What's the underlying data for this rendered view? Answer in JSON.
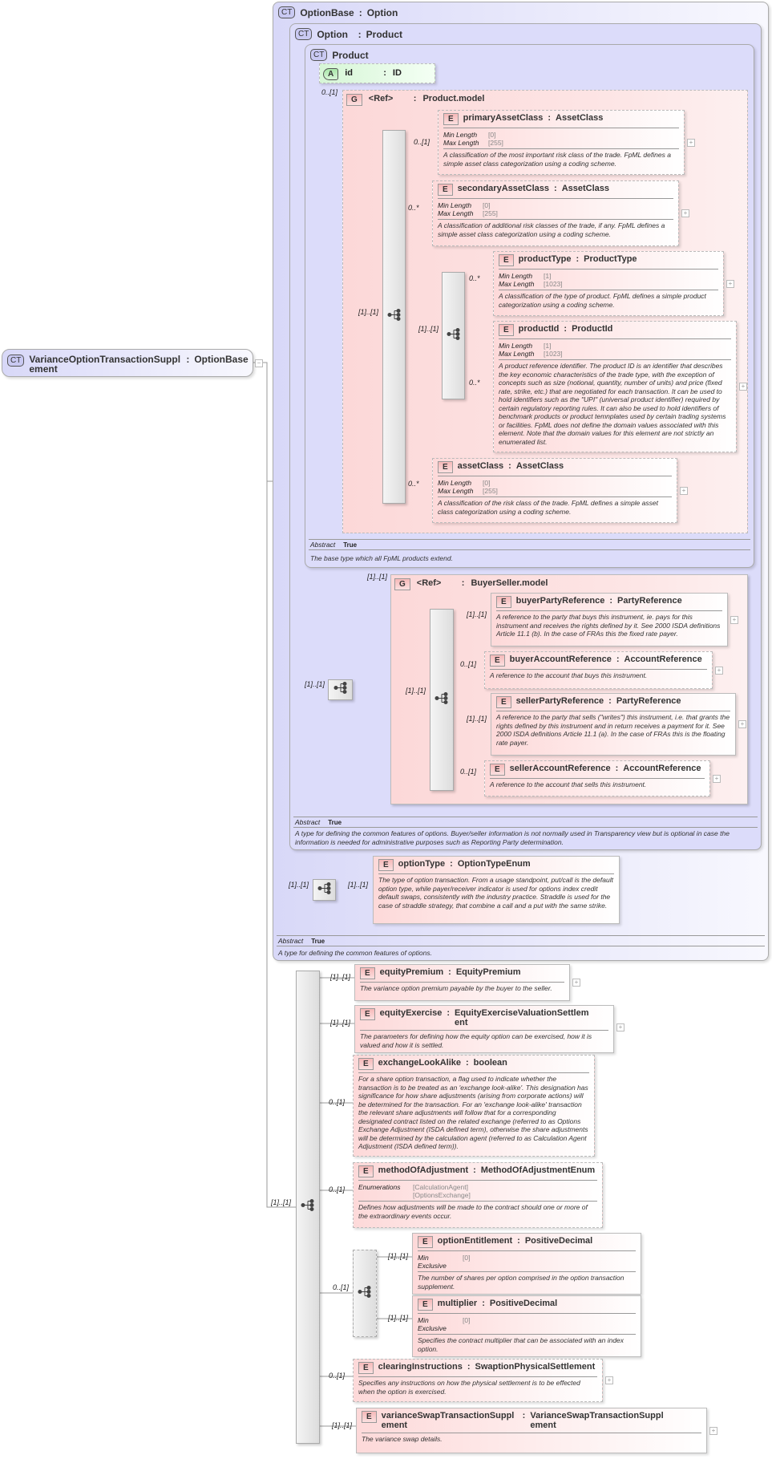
{
  "root": {
    "badge": "CT",
    "name": "VarianceOptionTransactionSupplement",
    "type": "OptionBase"
  },
  "optionBase": {
    "badge": "CT",
    "name": "OptionBase",
    "type": "Option",
    "abstract_label": "Abstract",
    "abstract_value": "True",
    "description": "A type for defining the common features of options."
  },
  "option": {
    "badge": "CT",
    "name": "Option",
    "type": "Product",
    "abstract_label": "Abstract",
    "abstract_value": "True",
    "description": "A type for defining the common features of options. Buyer/seller information is not normally used in Transparency view but is optional in case the information is needed for administrative purposes such as Reporting Party determination."
  },
  "product": {
    "badge": "CT",
    "name": "Product",
    "abstract_label": "Abstract",
    "abstract_value": "True",
    "description": "The base type which all FpML products extend."
  },
  "id_attr": {
    "badge": "A",
    "name": "id",
    "type": "ID"
  },
  "product_model": {
    "badge": "G",
    "name": "<Ref>",
    "type": "Product.model",
    "cardinality": "0..[1]"
  },
  "buyer_seller_model": {
    "badge": "G",
    "name": "<Ref>",
    "type": "BuyerSeller.model",
    "cardinality": "[1]..[1]"
  },
  "connectors": {
    "product_model_seq": "[1]..[1]",
    "product_inner_choice": "[1]..[1]",
    "option_seq": "[1]..[1]",
    "buyer_seller_seq": "[1]..[1]",
    "option_type_seq": "[1]..[1]",
    "option_type_inner": "[1]..[1]",
    "main_seq": "[1]..[1]",
    "choice": "0..[1]"
  },
  "elements": {
    "primaryAssetClass": {
      "badge": "E",
      "name": "primaryAssetClass",
      "type": "AssetClass",
      "cardinality": "0..[1]",
      "facets": [
        {
          "label": "Min Length",
          "value": "[0]"
        },
        {
          "label": "Max Length",
          "value": "[255]"
        }
      ],
      "description": "A classification of the most important risk class of the trade. FpML defines a simple asset class categorization using a coding scheme."
    },
    "secondaryAssetClass": {
      "badge": "E",
      "name": "secondaryAssetClass",
      "type": "AssetClass",
      "cardinality": "0..*",
      "facets": [
        {
          "label": "Min Length",
          "value": "[0]"
        },
        {
          "label": "Max Length",
          "value": "[255]"
        }
      ],
      "description": "A classification of additional risk classes of the trade, if any. FpML defines a simple asset class categorization using a coding scheme."
    },
    "productType": {
      "badge": "E",
      "name": "productType",
      "type": "ProductType",
      "cardinality": "0..*",
      "facets": [
        {
          "label": "Min Length",
          "value": "[1]"
        },
        {
          "label": "Max Length",
          "value": "[1023]"
        }
      ],
      "description": "A classification of the type of product. FpML defines a simple product categorization using a coding scheme."
    },
    "productId": {
      "badge": "E",
      "name": "productId",
      "type": "ProductId",
      "cardinality": "0..*",
      "facets": [
        {
          "label": "Min Length",
          "value": "[1]"
        },
        {
          "label": "Max Length",
          "value": "[1023]"
        }
      ],
      "description": "A product reference identifier. The product ID is an identifier that describes the key economic characteristics of the trade type, with the exception of concepts such as size (notional, quantity, number of units) and price (fixed rate, strike, etc.) that are negotiated for each transaction. It can be used to hold identifiers such as the \"UPI\" (universal product identifier) required by certain regulatory reporting rules. It can also be used to hold identifiers of benchmark products or product temnplates used by certain trading systems or facilities. FpML does not define the domain values associated with this element. Note that the domain values for this element are not strictly an enumerated list."
    },
    "assetClass": {
      "badge": "E",
      "name": "assetClass",
      "type": "AssetClass",
      "cardinality": "0..*",
      "facets": [
        {
          "label": "Min Length",
          "value": "[0]"
        },
        {
          "label": "Max Length",
          "value": "[255]"
        }
      ],
      "description": "A classification of the risk class of the trade. FpML defines a simple asset class categorization using a coding scheme."
    },
    "buyerPartyReference": {
      "badge": "E",
      "name": "buyerPartyReference",
      "type": "PartyReference",
      "cardinality": "[1]..[1]",
      "description": "A reference to the party that buys this instrument, ie. pays for this instrument and receives the rights defined by it. See 2000 ISDA definitions Article 11.1 (b). In the case of FRAs this the fixed rate payer."
    },
    "buyerAccountReference": {
      "badge": "E",
      "name": "buyerAccountReference",
      "type": "AccountReference",
      "cardinality": "0..[1]",
      "description": "A reference to the account that buys this instrument."
    },
    "sellerPartyReference": {
      "badge": "E",
      "name": "sellerPartyReference",
      "type": "PartyReference",
      "cardinality": "[1]..[1]",
      "description": "A reference to the party that sells (\"writes\") this instrument, i.e. that grants the rights defined by this instrument and in return receives a payment for it. See 2000 ISDA definitions Article 11.1 (a). In the case of FRAs this is the floating rate payer."
    },
    "sellerAccountReference": {
      "badge": "E",
      "name": "sellerAccountReference",
      "type": "AccountReference",
      "cardinality": "0..[1]",
      "description": "A reference to the account that sells this instrument."
    },
    "optionType": {
      "badge": "E",
      "name": "optionType",
      "type": "OptionTypeEnum",
      "cardinality": "[1]..[1]",
      "description": "The type of option transaction. From a usage standpoint, put/call is the default option type, while payer/receiver indicator is used for options index credit default swaps, consistently with the industry practice. Straddle is used for the case of straddle strategy, that combine a call and a put with the same strike."
    },
    "equityPremium": {
      "badge": "E",
      "name": "equityPremium",
      "type": "EquityPremium",
      "cardinality": "[1]..[1]",
      "description": "The variance option premium payable by the buyer to the seller."
    },
    "equityExercise": {
      "badge": "E",
      "name": "equityExercise",
      "type": "EquityExerciseValuationSettlement",
      "cardinality": "[1]..[1]",
      "description": "The parameters for defining how the equity option can be exercised, how it is valued and how it is settled."
    },
    "exchangeLookAlike": {
      "badge": "E",
      "name": "exchangeLookAlike",
      "type": "boolean",
      "cardinality": "0..[1]",
      "description": "For a share option transaction, a flag used to indicate whether the transaction is to be treated as an 'exchange look-alike'. This designation has significance for how share adjustments (arising from corporate actions) will be determined for the transaction. For an 'exchange look-alike' transaction the relevant share adjustments will follow that for a corresponding designated contract listed on the related exchange (referred to as Options Exchange Adjustment (ISDA defined term), otherwise the share adjustments will be determined by the calculation agent (referred to as Calculation Agent Adjustment (ISDA defined term))."
    },
    "methodOfAdjustment": {
      "badge": "E",
      "name": "methodOfAdjustment",
      "type": "MethodOfAdjustmentEnum",
      "cardinality": "0..[1]",
      "facets": [
        {
          "label": "Enumerations",
          "value": "[CalculationAgent]"
        },
        {
          "label": "",
          "value": "[OptionsExchange]"
        }
      ],
      "description": "Defines how adjustments will be made to the contract should one or more of the extraordinary events occur."
    },
    "optionEntitlement": {
      "badge": "E",
      "name": "optionEntitlement",
      "type": "PositiveDecimal",
      "cardinality": "[1]..[1]",
      "facets": [
        {
          "label": "Min Exclusive",
          "value": "[0]"
        }
      ],
      "description": "The number of shares per option comprised in the option transaction supplement."
    },
    "multiplier": {
      "badge": "E",
      "name": "multiplier",
      "type": "PositiveDecimal",
      "cardinality": "[1]..[1]",
      "facets": [
        {
          "label": "Min Exclusive",
          "value": "[0]"
        }
      ],
      "description": "Specifies the contract multiplier that can be associated with an index option."
    },
    "clearingInstructions": {
      "badge": "E",
      "name": "clearingInstructions",
      "type": "SwaptionPhysicalSettlement",
      "cardinality": "0..[1]",
      "description": "Specifies any instructions on how the physical settlement is to be effected when the option is exercised."
    },
    "varianceSwapTransactionSupplement": {
      "badge": "E",
      "name": "varianceSwapTransactionSupplement",
      "type": "VarianceSwapTransactionSupplement",
      "cardinality": "[1]..[1]",
      "description": "The variance swap details."
    }
  }
}
